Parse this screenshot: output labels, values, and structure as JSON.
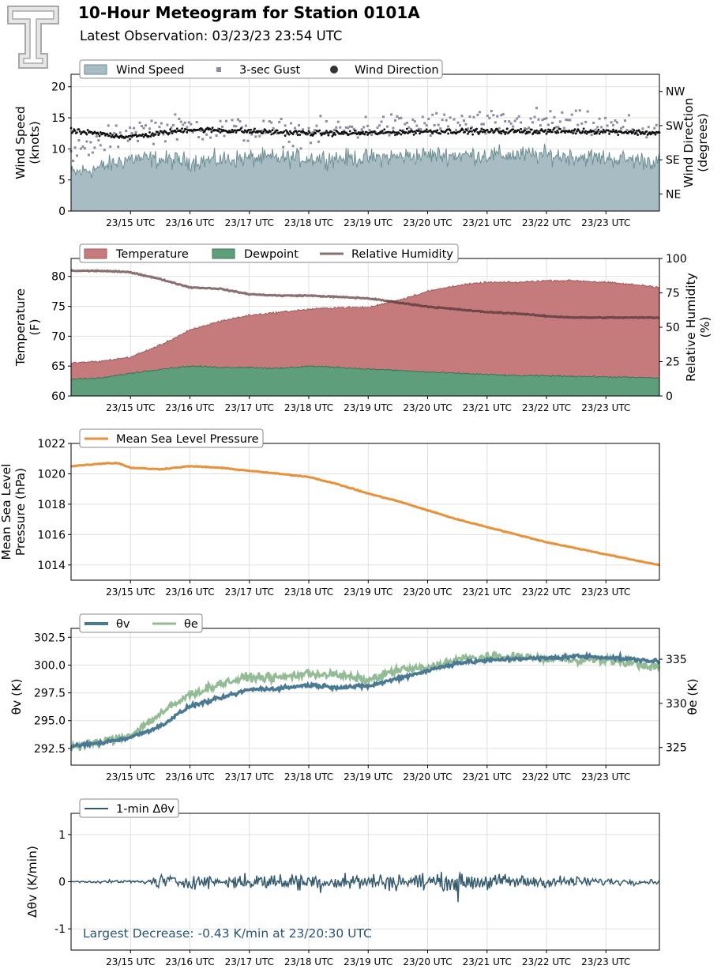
{
  "header": {
    "title": "10-Hour Meteogram for Station 0101A",
    "subtitle": "Latest Observation: 03/23/23 23:54 UTC"
  },
  "colors": {
    "wind_speed_fill": "#a7bdc3",
    "wind_speed_line": "#6e8f95",
    "gust": "#8f8aa3",
    "wind_direction": "#111111",
    "temperature_fill": "#c57a7c",
    "temperature_line": "#a05a5c",
    "dewpoint_fill": "#5e9e7a",
    "dewpoint_line": "#3f7454",
    "rh": "#8a6f70",
    "rh_dark": "#6b3f40",
    "pressure": "#e8913a",
    "theta_v": "#4a7a93",
    "theta_e": "#93bb95",
    "dtheta": "#355b6e",
    "grid": "#e0e0e0",
    "annotation": "#2a5572"
  },
  "icons": {
    "logo": "texas-tech-double-t-logo"
  },
  "chart_data": [
    {
      "type": "area",
      "name": "wind",
      "time_ticks": [
        "23/15 UTC",
        "23/16 UTC",
        "23/17 UTC",
        "23/18 UTC",
        "23/19 UTC",
        "23/20 UTC",
        "23/21 UTC",
        "23/22 UTC",
        "23/23 UTC"
      ],
      "x_range_hours": [
        14.0,
        23.9
      ],
      "ylabel": "Wind Speed\n(knots)",
      "ylim": [
        0,
        22
      ],
      "yticks": [
        0,
        5,
        10,
        15,
        20
      ],
      "y2label": "Wind Direction\n(degrees)",
      "y2ticks": [
        {
          "label": "NE",
          "value": 45
        },
        {
          "label": "SE",
          "value": 135
        },
        {
          "label": "SW",
          "value": 225
        },
        {
          "label": "NW",
          "value": 315
        }
      ],
      "y2lim": [
        0,
        360
      ],
      "legend": [
        "Wind Speed",
        "3-sec Gust",
        "Wind Direction"
      ],
      "legend_loc": "upper-left",
      "series": {
        "wind_speed": {
          "knots_by_hour": [
            [
              14.0,
              6
            ],
            [
              14.5,
              7
            ],
            [
              15,
              8.5
            ],
            [
              16,
              8
            ],
            [
              17,
              8.5
            ],
            [
              18,
              8.5
            ],
            [
              19,
              8.5
            ],
            [
              20,
              9
            ],
            [
              21,
              9
            ],
            [
              22,
              9
            ],
            [
              23,
              8.5
            ],
            [
              23.9,
              8
            ]
          ]
        },
        "gust": {
          "knots_by_hour": [
            [
              14.0,
              9
            ],
            [
              14.5,
              11
            ],
            [
              15,
              13
            ],
            [
              16,
              13.5
            ],
            [
              17,
              13
            ],
            [
              18,
              12.5
            ],
            [
              19,
              13.5
            ],
            [
              20,
              14
            ],
            [
              21,
              14
            ],
            [
              22,
              14.5
            ],
            [
              23,
              13.5
            ],
            [
              23.9,
              13
            ]
          ]
        },
        "wind_direction": {
          "degrees_by_hour": [
            [
              14.0,
              210
            ],
            [
              15,
              195
            ],
            [
              16,
              215
            ],
            [
              17,
              210
            ],
            [
              18,
              205
            ],
            [
              19,
              205
            ],
            [
              20,
              210
            ],
            [
              21,
              210
            ],
            [
              22,
              210
            ],
            [
              23,
              210
            ],
            [
              23.9,
              205
            ]
          ]
        }
      }
    },
    {
      "type": "area",
      "name": "thermo",
      "ylabel": "Temperature\n(F)",
      "ylim": [
        60,
        83
      ],
      "yticks": [
        60,
        65,
        70,
        75,
        80
      ],
      "y2label": "Relative Humidity\n(%)",
      "y2lim": [
        0,
        100
      ],
      "y2ticks": [
        0,
        25,
        50,
        75,
        100
      ],
      "legend": [
        "Temperature",
        "Dewpoint",
        "Relative Humidity"
      ],
      "legend_loc": "upper-left",
      "series": {
        "temperature": [
          [
            14.0,
            65.5
          ],
          [
            14.5,
            65.8
          ],
          [
            15,
            66.5
          ],
          [
            15.5,
            68.5
          ],
          [
            16,
            71
          ],
          [
            16.5,
            72.5
          ],
          [
            17,
            73.5
          ],
          [
            17.5,
            74
          ],
          [
            18,
            74.5
          ],
          [
            18.5,
            74.8
          ],
          [
            19,
            74.8
          ],
          [
            19.5,
            76
          ],
          [
            20,
            77.5
          ],
          [
            20.5,
            78.5
          ],
          [
            21,
            79
          ],
          [
            21.5,
            79
          ],
          [
            22,
            79.3
          ],
          [
            22.5,
            79.3
          ],
          [
            23,
            79
          ],
          [
            23.5,
            78.6
          ],
          [
            23.9,
            78.2
          ]
        ],
        "dewpoint": [
          [
            14.0,
            62.8
          ],
          [
            14.5,
            63
          ],
          [
            15,
            63.8
          ],
          [
            15.5,
            64.5
          ],
          [
            16,
            65
          ],
          [
            16.5,
            64.8
          ],
          [
            17,
            64.8
          ],
          [
            17.5,
            64.6
          ],
          [
            18,
            65
          ],
          [
            18.5,
            64.8
          ],
          [
            19,
            64.5
          ],
          [
            19.5,
            64.3
          ],
          [
            20,
            64
          ],
          [
            20.5,
            63.8
          ],
          [
            21,
            63.6
          ],
          [
            21.5,
            63.4
          ],
          [
            22,
            63.4
          ],
          [
            22.5,
            63.3
          ],
          [
            23,
            63.2
          ],
          [
            23.5,
            63.1
          ],
          [
            23.9,
            63
          ]
        ],
        "relative_humidity": [
          [
            14.0,
            91
          ],
          [
            14.5,
            91
          ],
          [
            15,
            90
          ],
          [
            15.5,
            85
          ],
          [
            16,
            79
          ],
          [
            16.5,
            78
          ],
          [
            17,
            74
          ],
          [
            17.5,
            73
          ],
          [
            18,
            73
          ],
          [
            18.5,
            72
          ],
          [
            19,
            71
          ],
          [
            19.5,
            68
          ],
          [
            20,
            65
          ],
          [
            20.5,
            63
          ],
          [
            21,
            61
          ],
          [
            21.5,
            60
          ],
          [
            22,
            58
          ],
          [
            22.5,
            57
          ],
          [
            23,
            57
          ],
          [
            23.5,
            57
          ],
          [
            23.9,
            57
          ]
        ]
      }
    },
    {
      "type": "line",
      "name": "pressure",
      "ylabel": "Mean Sea Level\nPressure (hPa)",
      "ylim": [
        1013,
        1022
      ],
      "yticks": [
        1014,
        1016,
        1018,
        1020,
        1022
      ],
      "legend": [
        "Mean Sea Level Pressure"
      ],
      "legend_loc": "upper-left",
      "series": {
        "mslp": [
          [
            14.0,
            1020.5
          ],
          [
            14.6,
            1020.7
          ],
          [
            14.8,
            1020.7
          ],
          [
            15,
            1020.4
          ],
          [
            15.5,
            1020.3
          ],
          [
            16,
            1020.5
          ],
          [
            16.5,
            1020.4
          ],
          [
            17,
            1020.2
          ],
          [
            17.5,
            1020.0
          ],
          [
            18,
            1019.8
          ],
          [
            18.5,
            1019.3
          ],
          [
            19,
            1018.7
          ],
          [
            19.5,
            1018.2
          ],
          [
            20,
            1017.6
          ],
          [
            20.5,
            1017.0
          ],
          [
            21,
            1016.5
          ],
          [
            21.5,
            1016.0
          ],
          [
            22,
            1015.5
          ],
          [
            22.5,
            1015.1
          ],
          [
            23,
            1014.7
          ],
          [
            23.5,
            1014.3
          ],
          [
            23.9,
            1014.0
          ]
        ]
      }
    },
    {
      "type": "line",
      "name": "theta",
      "ylabel": "θv (K)",
      "ylim": [
        291.0,
        303.3
      ],
      "yticks": [
        "292.5",
        "295.0",
        "297.5",
        "300.0",
        "302.5"
      ],
      "y2label": "θe (K)",
      "y2lim": [
        323.0,
        338.5
      ],
      "y2ticks": [
        325,
        330,
        335
      ],
      "legend": [
        "θv",
        "θe"
      ],
      "legend_loc": "upper-left",
      "series": {
        "theta_v": [
          [
            14.0,
            292.7
          ],
          [
            14.5,
            293.0
          ],
          [
            15,
            293.5
          ],
          [
            15.5,
            294.5
          ],
          [
            16,
            296.3
          ],
          [
            16.5,
            297.0
          ],
          [
            17,
            297.8
          ],
          [
            17.5,
            297.9
          ],
          [
            18,
            298.2
          ],
          [
            18.5,
            298.0
          ],
          [
            19,
            298.1
          ],
          [
            19.5,
            298.8
          ],
          [
            20,
            299.5
          ],
          [
            20.5,
            300.2
          ],
          [
            21,
            300.4
          ],
          [
            21.5,
            300.6
          ],
          [
            22,
            300.6
          ],
          [
            22.5,
            300.8
          ],
          [
            23,
            300.7
          ],
          [
            23.5,
            300.5
          ],
          [
            23.9,
            300.3
          ]
        ],
        "theta_e": [
          [
            14.0,
            325.0
          ],
          [
            14.5,
            325.6
          ],
          [
            15,
            326.4
          ],
          [
            15.5,
            328.8
          ],
          [
            16,
            331.0
          ],
          [
            16.5,
            332.2
          ],
          [
            17,
            333.0
          ],
          [
            17.5,
            332.9
          ],
          [
            18,
            333.4
          ],
          [
            18.5,
            333.2
          ],
          [
            19,
            332.6
          ],
          [
            19.5,
            333.8
          ],
          [
            20,
            334.0
          ],
          [
            20.5,
            335.0
          ],
          [
            21,
            335.2
          ],
          [
            21.5,
            335.3
          ],
          [
            22,
            335.0
          ],
          [
            22.5,
            335.0
          ],
          [
            23,
            334.9
          ],
          [
            23.5,
            334.5
          ],
          [
            23.9,
            334.0
          ]
        ]
      }
    },
    {
      "type": "line",
      "name": "dtheta",
      "ylabel": "Δθv (K/min)",
      "ylim": [
        -1.45,
        1.45
      ],
      "yticks": [
        -1,
        0,
        1
      ],
      "legend": [
        "1-min Δθv"
      ],
      "legend_loc": "upper-left",
      "annotation": "Largest Decrease: -0.43 K/min at 23/20:30 UTC",
      "series": {
        "amplitude_by_hour": [
          [
            14.0,
            0.02
          ],
          [
            15.3,
            0.05
          ],
          [
            15.5,
            0.2
          ],
          [
            16,
            0.15
          ],
          [
            17,
            0.18
          ],
          [
            18,
            0.22
          ],
          [
            19,
            0.2
          ],
          [
            20,
            0.2
          ],
          [
            21,
            0.2
          ],
          [
            22,
            0.15
          ],
          [
            23,
            0.1
          ],
          [
            23.9,
            0.05
          ]
        ]
      }
    }
  ]
}
